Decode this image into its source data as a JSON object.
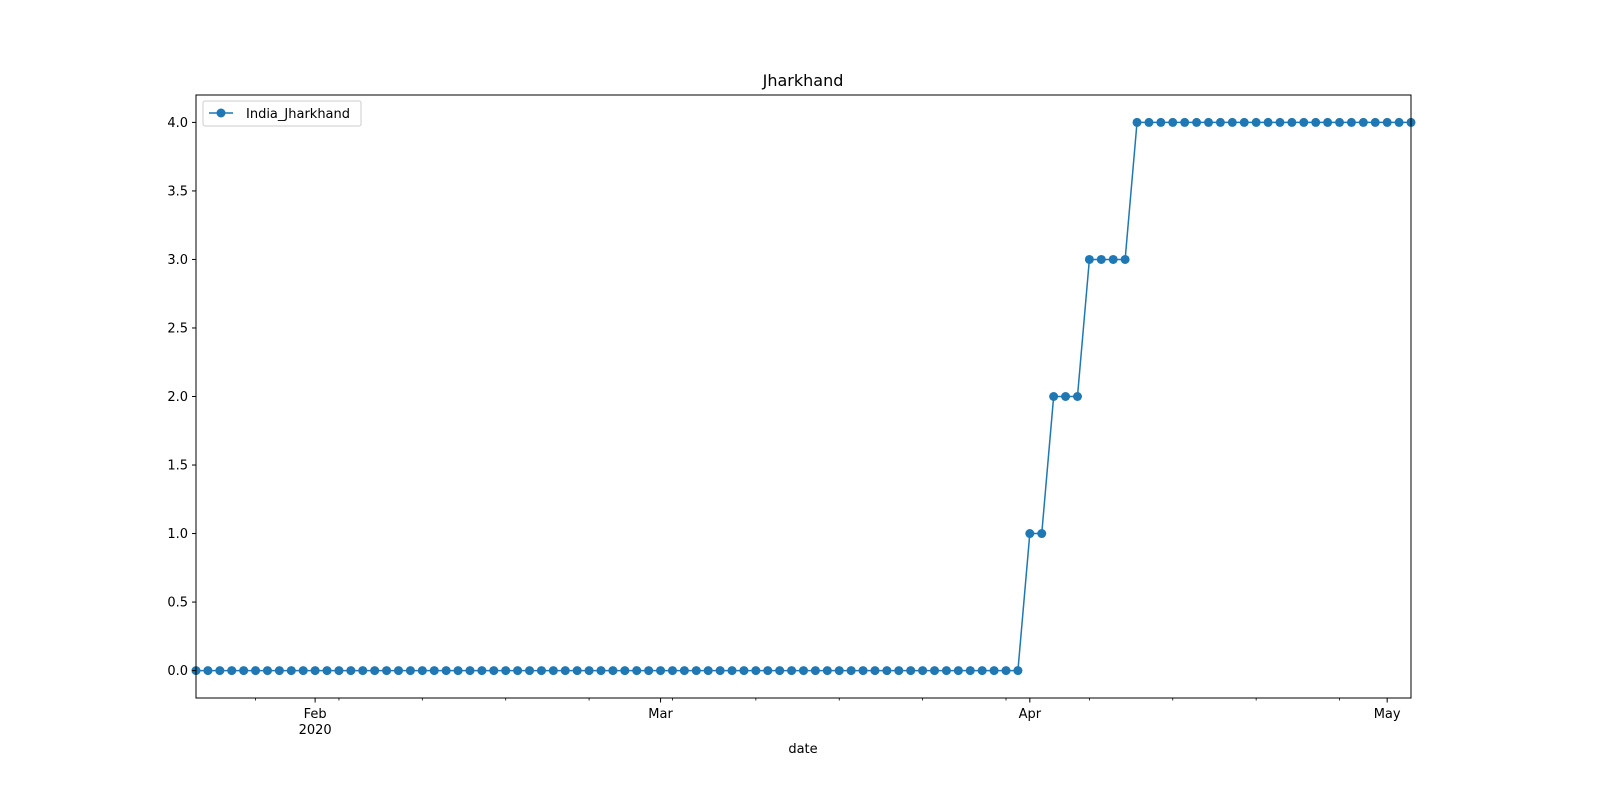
{
  "chart_data": {
    "type": "line",
    "title": "Jharkhand",
    "xlabel": "date",
    "ylabel": "",
    "x_start": "2020-01-22",
    "x_end": "2020-05-03",
    "xlim": [
      "2020-01-22",
      "2020-05-03"
    ],
    "ylim": [
      -0.2,
      4.2
    ],
    "grid": false,
    "legend_position": "top-left",
    "x_ticks": [
      {
        "date": "2020-02-01",
        "label": "Feb",
        "sublabel": "2020"
      },
      {
        "date": "2020-03-01",
        "label": "Mar",
        "sublabel": ""
      },
      {
        "date": "2020-04-01",
        "label": "Apr",
        "sublabel": ""
      },
      {
        "date": "2020-05-01",
        "label": "May",
        "sublabel": ""
      }
    ],
    "y_ticks": [
      "0.0",
      "0.5",
      "1.0",
      "1.5",
      "2.0",
      "2.5",
      "3.0",
      "3.5",
      "4.0"
    ],
    "series": [
      {
        "name": "India_Jharkhand",
        "color": "#1f77b4",
        "marker": "circle",
        "values": [
          0,
          0,
          0,
          0,
          0,
          0,
          0,
          0,
          0,
          0,
          0,
          0,
          0,
          0,
          0,
          0,
          0,
          0,
          0,
          0,
          0,
          0,
          0,
          0,
          0,
          0,
          0,
          0,
          0,
          0,
          0,
          0,
          0,
          0,
          0,
          0,
          0,
          0,
          0,
          0,
          0,
          0,
          0,
          0,
          0,
          0,
          0,
          0,
          0,
          0,
          0,
          0,
          0,
          0,
          0,
          0,
          0,
          0,
          0,
          0,
          0,
          0,
          0,
          0,
          0,
          0,
          0,
          0,
          0,
          0,
          1,
          1,
          2,
          2,
          2,
          3,
          3,
          3,
          3,
          4,
          4,
          4,
          4,
          4,
          4,
          4,
          4,
          4,
          4,
          4,
          4,
          4,
          4,
          4,
          4,
          4,
          4,
          4,
          4,
          4,
          4,
          4,
          4
        ]
      }
    ]
  }
}
